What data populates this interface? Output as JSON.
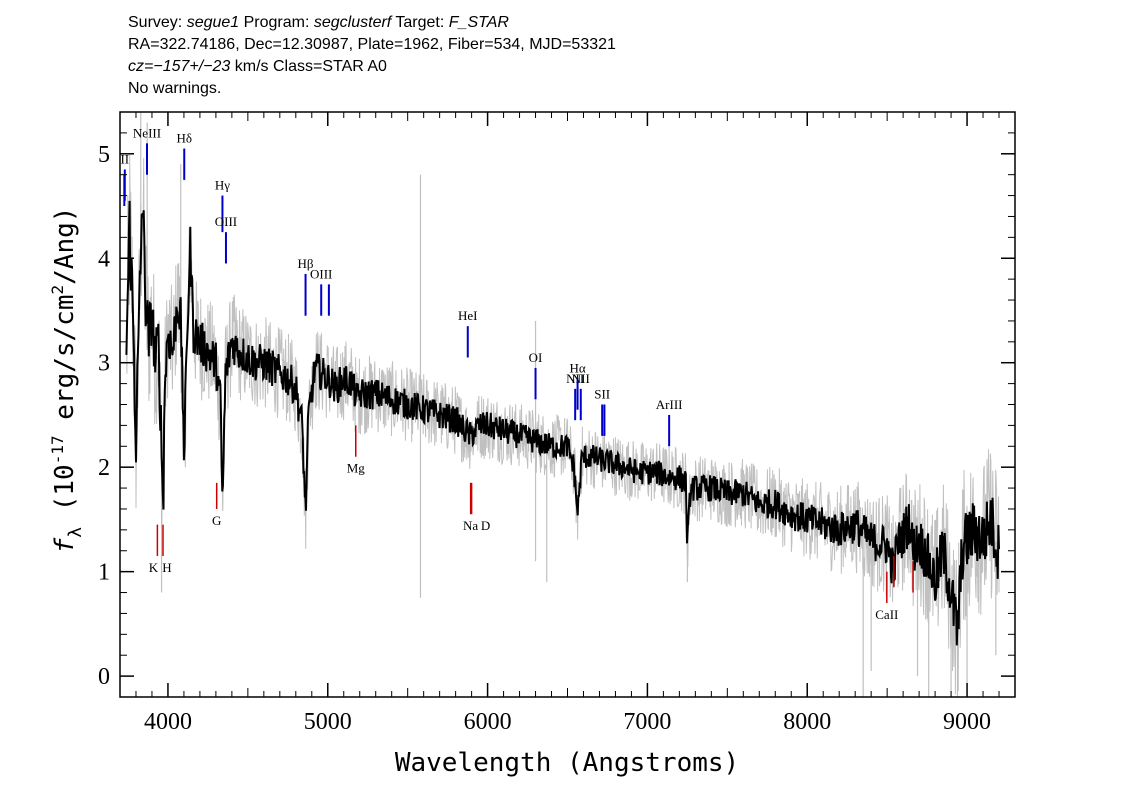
{
  "header": {
    "line1": [
      {
        "text": "Survey: ",
        "italic": false
      },
      {
        "text": "segue1",
        "italic": true
      },
      {
        "text": " Program: ",
        "italic": false
      },
      {
        "text": "segclusterf",
        "italic": true
      },
      {
        "text": " Target: ",
        "italic": false
      },
      {
        "text": "F_STAR",
        "italic": true
      }
    ],
    "line2": "RA=322.74186, Dec=12.30987, Plate=1962, Fiber=534, MJD=53321",
    "line3": [
      {
        "text": "cz=",
        "italic": true
      },
      {
        "text": "−157+/−23",
        "italic": true
      },
      {
        "text": " km/s Class=STAR A0",
        "italic": false
      }
    ],
    "line4": "No warnings."
  },
  "chart_data": {
    "type": "line",
    "xlabel": "Wavelength (Angstroms)",
    "ylabel": "f_λ (10^-17 erg/s/cm^2/Ang)",
    "xlim": [
      3700,
      9300
    ],
    "ylim": [
      -0.2,
      5.4
    ],
    "xticks": [
      4000,
      5000,
      6000,
      7000,
      8000,
      9000
    ],
    "yticks": [
      0,
      1,
      2,
      3,
      4,
      5
    ],
    "series": [
      {
        "role": "flux",
        "color": "#000000",
        "points": [
          [
            3740,
            3.1
          ],
          [
            3760,
            4.3
          ],
          [
            3780,
            3.5
          ],
          [
            3800,
            2.3
          ],
          [
            3820,
            3.4
          ],
          [
            3840,
            4.6
          ],
          [
            3860,
            3.6
          ],
          [
            3880,
            3.2
          ],
          [
            3900,
            3.5
          ],
          [
            3920,
            3.0
          ],
          [
            3940,
            3.2
          ],
          [
            3960,
            2.2
          ],
          [
            3970,
            1.6
          ],
          [
            3980,
            2.8
          ],
          [
            4000,
            3.3
          ],
          [
            4030,
            3.1
          ],
          [
            4060,
            3.6
          ],
          [
            4080,
            3.4
          ],
          [
            4102,
            2.1
          ],
          [
            4120,
            3.3
          ],
          [
            4140,
            4.1
          ],
          [
            4160,
            3.3
          ],
          [
            4200,
            3.2
          ],
          [
            4250,
            3.1
          ],
          [
            4300,
            3.0
          ],
          [
            4330,
            2.6
          ],
          [
            4341,
            1.6
          ],
          [
            4360,
            2.9
          ],
          [
            4400,
            3.2
          ],
          [
            4450,
            3.1
          ],
          [
            4500,
            3.05
          ],
          [
            4550,
            3.0
          ],
          [
            4600,
            3.0
          ],
          [
            4650,
            2.95
          ],
          [
            4700,
            2.9
          ],
          [
            4750,
            2.85
          ],
          [
            4800,
            2.75
          ],
          [
            4840,
            2.4
          ],
          [
            4861,
            1.55
          ],
          [
            4880,
            2.5
          ],
          [
            4920,
            2.95
          ],
          [
            4960,
            2.9
          ],
          [
            5000,
            2.85
          ],
          [
            5050,
            2.75
          ],
          [
            5100,
            2.85
          ],
          [
            5150,
            2.8
          ],
          [
            5183,
            2.65
          ],
          [
            5200,
            2.7
          ],
          [
            5300,
            2.7
          ],
          [
            5400,
            2.65
          ],
          [
            5500,
            2.6
          ],
          [
            5600,
            2.55
          ],
          [
            5700,
            2.5
          ],
          [
            5800,
            2.45
          ],
          [
            5890,
            2.3
          ],
          [
            5950,
            2.4
          ],
          [
            6000,
            2.4
          ],
          [
            6100,
            2.35
          ],
          [
            6200,
            2.3
          ],
          [
            6300,
            2.25
          ],
          [
            6400,
            2.2
          ],
          [
            6500,
            2.2
          ],
          [
            6540,
            2.0
          ],
          [
            6563,
            1.55
          ],
          [
            6590,
            2.1
          ],
          [
            6650,
            2.1
          ],
          [
            6750,
            2.05
          ],
          [
            6850,
            2.0
          ],
          [
            6950,
            1.95
          ],
          [
            7050,
            1.95
          ],
          [
            7150,
            1.9
          ],
          [
            7200,
            1.9
          ],
          [
            7240,
            1.85
          ],
          [
            7250,
            1.25
          ],
          [
            7270,
            1.8
          ],
          [
            7400,
            1.8
          ],
          [
            7500,
            1.75
          ],
          [
            7600,
            1.75
          ],
          [
            7700,
            1.65
          ],
          [
            7800,
            1.65
          ],
          [
            7900,
            1.55
          ],
          [
            8000,
            1.5
          ],
          [
            8100,
            1.45
          ],
          [
            8200,
            1.4
          ],
          [
            8300,
            1.45
          ],
          [
            8400,
            1.3
          ],
          [
            8500,
            1.25
          ],
          [
            8542,
            1.0
          ],
          [
            8560,
            1.25
          ],
          [
            8600,
            1.35
          ],
          [
            8640,
            1.5
          ],
          [
            8662,
            1.2
          ],
          [
            8700,
            1.3
          ],
          [
            8760,
            1.1
          ],
          [
            8800,
            0.9
          ],
          [
            8850,
            1.2
          ],
          [
            8900,
            0.8
          ],
          [
            8940,
            0.4
          ],
          [
            8970,
            1.2
          ],
          [
            9000,
            1.3
          ],
          [
            9050,
            1.4
          ],
          [
            9100,
            1.3
          ],
          [
            9150,
            1.5
          ],
          [
            9200,
            1.15
          ]
        ]
      },
      {
        "role": "noise",
        "color": "#c0c0c0",
        "band": [
          [
            3740,
            1.8
          ],
          [
            3900,
            1.3
          ],
          [
            4000,
            1.1
          ],
          [
            4500,
            0.85
          ],
          [
            5000,
            0.75
          ],
          [
            5500,
            0.65
          ],
          [
            6000,
            0.6
          ],
          [
            6500,
            0.55
          ],
          [
            7000,
            0.55
          ],
          [
            7500,
            0.6
          ],
          [
            8000,
            0.7
          ],
          [
            8500,
            0.9
          ],
          [
            9000,
            1.4
          ],
          [
            9200,
            1.4
          ]
        ],
        "spikes": [
          [
            3830,
            5.4
          ],
          [
            3870,
            5.3
          ],
          [
            3960,
            0.8
          ],
          [
            4080,
            4.9
          ],
          [
            5580,
            4.8
          ],
          [
            5580,
            0.75
          ],
          [
            6300,
            3.4
          ],
          [
            6300,
            1.1
          ],
          [
            6370,
            0.9
          ],
          [
            7250,
            0.9
          ],
          [
            8350,
            -0.2
          ],
          [
            8400,
            0.05
          ],
          [
            8690,
            0.0
          ],
          [
            8760,
            -0.2
          ],
          [
            8900,
            -0.2
          ],
          [
            8940,
            -0.2
          ],
          [
            9000,
            -0.1
          ],
          [
            9180,
            0.2
          ]
        ]
      }
    ],
    "emission_lines": [
      {
        "label": "",
        "wave": 3727,
        "y0": 4.5,
        "y1": 4.8
      },
      {
        "label": "II",
        "wave": 3730,
        "y0": 4.55,
        "y1": 4.85
      },
      {
        "label": "NeIII",
        "wave": 3869,
        "y0": 4.8,
        "y1": 5.1
      },
      {
        "label": "Hδ",
        "wave": 4102,
        "y0": 4.75,
        "y1": 5.05
      },
      {
        "label": "Hγ",
        "wave": 4341,
        "y0": 4.25,
        "y1": 4.6
      },
      {
        "label": "OIII",
        "wave": 4363,
        "y0": 3.95,
        "y1": 4.25
      },
      {
        "label": "Hβ",
        "wave": 4861,
        "y0": 3.45,
        "y1": 3.85
      },
      {
        "label": "OIII",
        "wave": 4959,
        "y0": 3.45,
        "y1": 3.75
      },
      {
        "label": "",
        "wave": 5007,
        "y0": 3.45,
        "y1": 3.75
      },
      {
        "label": "HeI",
        "wave": 5876,
        "y0": 3.05,
        "y1": 3.35
      },
      {
        "label": "OI",
        "wave": 6300,
        "y0": 2.65,
        "y1": 2.95
      },
      {
        "label": "NII",
        "wave": 6548,
        "y0": 2.45,
        "y1": 2.75
      },
      {
        "label": "Hα",
        "wave": 6563,
        "y0": 2.55,
        "y1": 2.85
      },
      {
        "label": "NII",
        "wave": 6583,
        "y0": 2.45,
        "y1": 2.75
      },
      {
        "label": "SII",
        "wave": 6717,
        "y0": 2.3,
        "y1": 2.6
      },
      {
        "label": "",
        "wave": 6731,
        "y0": 2.3,
        "y1": 2.6
      },
      {
        "label": "ArIII",
        "wave": 7136,
        "y0": 2.2,
        "y1": 2.5
      }
    ],
    "absorption_lines": [
      {
        "label": "K",
        "wave": 3934,
        "y0": 1.15,
        "y1": 1.45
      },
      {
        "label": "H",
        "wave": 3969,
        "y0": 1.15,
        "y1": 1.45
      },
      {
        "label": "G",
        "wave": 4305,
        "y0": 1.6,
        "y1": 1.85
      },
      {
        "label": "Mg",
        "wave": 5175,
        "y0": 2.1,
        "y1": 2.4
      },
      {
        "label": "Na",
        "wave": 5894,
        "y0": 1.55,
        "y1": 1.85
      },
      {
        "label": "D",
        "wave": 5900,
        "y0": 1.55,
        "y1": 1.85
      },
      {
        "label": "CaII",
        "wave": 8498,
        "y0": 0.7,
        "y1": 1.0
      },
      {
        "label": "",
        "wave": 8542,
        "y0": 0.85,
        "y1": 1.15
      },
      {
        "label": "",
        "wave": 8662,
        "y0": 0.8,
        "y1": 1.1
      }
    ],
    "colors": {
      "emission": "#0000cc",
      "absorption": "#cc0000",
      "flux": "#000000",
      "noise": "#c0c0c0",
      "frame": "#000000"
    }
  }
}
